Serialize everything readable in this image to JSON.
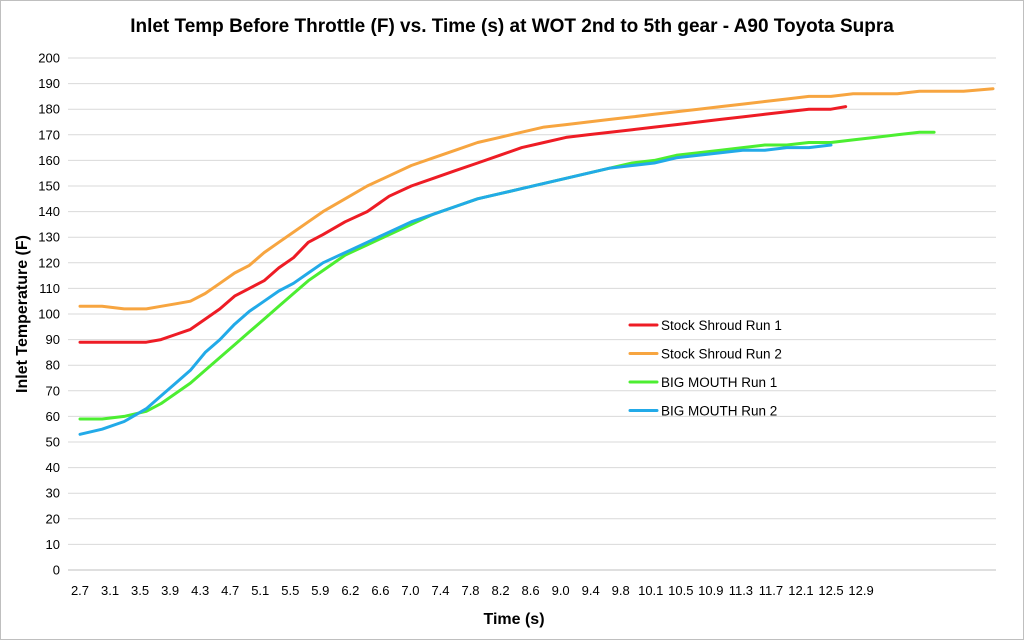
{
  "chart_data": {
    "type": "line",
    "title": "Inlet Temp Before Throttle (F) vs. Time (s) at WOT 2nd to 5th gear - A90 Toyota Supra",
    "xlabel": "Time (s)",
    "ylabel": "Inlet Temperature (F)",
    "xlim": [
      2.7,
      15.1
    ],
    "ylim": [
      0,
      200
    ],
    "x_tick_labels": [
      "2.7",
      "3.1",
      "3.5",
      "3.9",
      "4.3",
      "4.7",
      "5.1",
      "5.5",
      "5.9",
      "6.2",
      "6.6",
      "7.0",
      "7.4",
      "7.8",
      "8.2",
      "8.6",
      "9.0",
      "9.4",
      "9.8",
      "10.1",
      "10.5",
      "10.9",
      "11.3",
      "11.7",
      "12.1",
      "12.5",
      "12.9"
    ],
    "y_ticks": [
      0,
      10,
      20,
      30,
      40,
      50,
      60,
      70,
      80,
      90,
      100,
      110,
      120,
      130,
      140,
      150,
      160,
      170,
      180,
      190,
      200
    ],
    "grid": "horizontal",
    "legend_position": "center-right",
    "series": [
      {
        "name": "Stock Shroud Run 1",
        "color": "#ee1c25",
        "x": [
          2.7,
          3.0,
          3.3,
          3.6,
          3.8,
          4.0,
          4.2,
          4.4,
          4.6,
          4.8,
          5.0,
          5.2,
          5.4,
          5.6,
          5.8,
          6.0,
          6.3,
          6.6,
          6.9,
          7.2,
          7.5,
          7.8,
          8.1,
          8.4,
          8.7,
          9.0,
          9.3,
          9.6,
          9.9,
          10.2,
          10.5,
          10.8,
          11.1,
          11.4,
          11.7,
          12.0,
          12.3,
          12.6,
          12.9,
          13.1
        ],
        "y": [
          89,
          89,
          89,
          89,
          90,
          92,
          94,
          98,
          102,
          107,
          110,
          113,
          118,
          122,
          128,
          131,
          136,
          140,
          146,
          150,
          153,
          156,
          159,
          162,
          165,
          167,
          169,
          170,
          171,
          172,
          173,
          174,
          175,
          176,
          177,
          178,
          179,
          180,
          180,
          181
        ]
      },
      {
        "name": "Stock Shroud Run 2",
        "color": "#f7a540",
        "x": [
          2.7,
          3.0,
          3.3,
          3.6,
          3.8,
          4.0,
          4.2,
          4.4,
          4.6,
          4.8,
          5.0,
          5.2,
          5.4,
          5.6,
          5.8,
          6.0,
          6.3,
          6.6,
          6.9,
          7.2,
          7.5,
          7.8,
          8.1,
          8.4,
          8.7,
          9.0,
          9.3,
          9.6,
          9.9,
          10.2,
          10.5,
          10.8,
          11.1,
          11.4,
          11.7,
          12.0,
          12.3,
          12.6,
          12.9,
          13.2,
          13.5,
          13.8,
          14.1,
          14.4,
          14.7,
          15.1
        ],
        "y": [
          103,
          103,
          102,
          102,
          103,
          104,
          105,
          108,
          112,
          116,
          119,
          124,
          128,
          132,
          136,
          140,
          145,
          150,
          154,
          158,
          161,
          164,
          167,
          169,
          171,
          173,
          174,
          175,
          176,
          177,
          178,
          179,
          180,
          181,
          182,
          183,
          184,
          185,
          185,
          186,
          186,
          186,
          187,
          187,
          187,
          188
        ]
      },
      {
        "name": "BIG MOUTH Run 1",
        "color": "#4cee31",
        "x": [
          2.7,
          3.0,
          3.3,
          3.6,
          3.8,
          4.0,
          4.2,
          4.4,
          4.6,
          4.8,
          5.0,
          5.2,
          5.4,
          5.6,
          5.8,
          6.0,
          6.3,
          6.6,
          6.9,
          7.2,
          7.5,
          7.8,
          8.1,
          8.4,
          8.7,
          9.0,
          9.3,
          9.6,
          9.9,
          10.2,
          10.5,
          10.8,
          11.1,
          11.4,
          11.7,
          12.0,
          12.3,
          12.6,
          12.9,
          13.2,
          13.5,
          13.8,
          14.1,
          14.3
        ],
        "y": [
          59,
          59,
          60,
          62,
          65,
          69,
          73,
          78,
          83,
          88,
          93,
          98,
          103,
          108,
          113,
          117,
          123,
          127,
          131,
          135,
          139,
          142,
          145,
          147,
          149,
          151,
          153,
          155,
          157,
          159,
          160,
          162,
          163,
          164,
          165,
          166,
          166,
          167,
          167,
          168,
          169,
          170,
          171,
          171
        ]
      },
      {
        "name": "BIG MOUTH Run 2",
        "color": "#22aae8",
        "x": [
          2.7,
          3.0,
          3.3,
          3.6,
          3.8,
          4.0,
          4.2,
          4.4,
          4.6,
          4.8,
          5.0,
          5.2,
          5.4,
          5.6,
          5.8,
          6.0,
          6.3,
          6.6,
          6.9,
          7.2,
          7.5,
          7.8,
          8.1,
          8.4,
          8.7,
          9.0,
          9.3,
          9.6,
          9.9,
          10.2,
          10.5,
          10.8,
          11.1,
          11.4,
          11.7,
          12.0,
          12.3,
          12.6,
          12.9
        ],
        "y": [
          53,
          55,
          58,
          63,
          68,
          73,
          78,
          85,
          90,
          96,
          101,
          105,
          109,
          112,
          116,
          120,
          124,
          128,
          132,
          136,
          139,
          142,
          145,
          147,
          149,
          151,
          153,
          155,
          157,
          158,
          159,
          161,
          162,
          163,
          164,
          164,
          165,
          165,
          166
        ]
      }
    ]
  }
}
